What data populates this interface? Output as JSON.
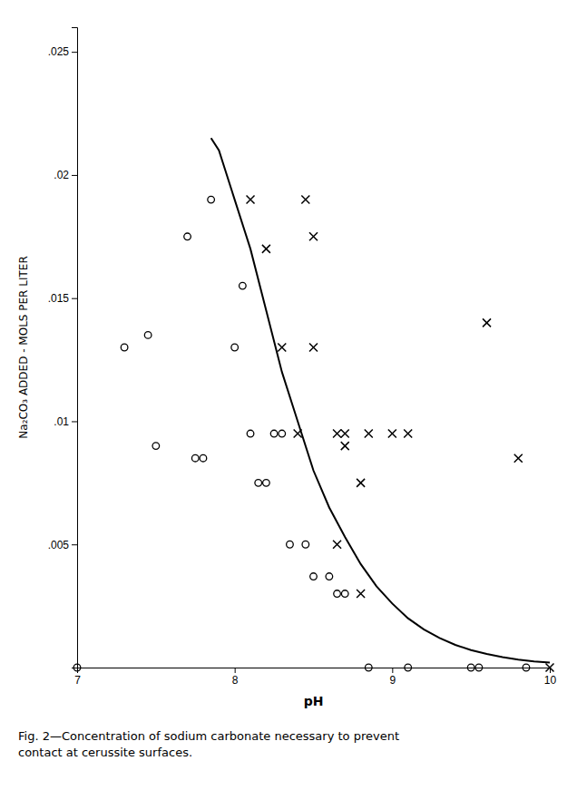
{
  "chart_data": {
    "type": "scatter",
    "xlabel": "pH",
    "ylabel": "Na₂CO₃ ADDED - MOLS PER LITER",
    "annotations": [
      "Fig. 2—Concentration of sodium carbonate necessary to prevent",
      "contact at cerussite surfaces."
    ],
    "xlim": [
      7,
      10
    ],
    "ylim": [
      0,
      0.026
    ],
    "xticks": [
      7,
      8,
      9,
      10
    ],
    "yticks": [
      {
        "value": 0.0,
        "label": ""
      },
      {
        "value": 0.005,
        "label": ".005"
      },
      {
        "value": 0.01,
        "label": ".01"
      },
      {
        "value": 0.015,
        "label": ".015"
      },
      {
        "value": 0.02,
        "label": ".02"
      },
      {
        "value": 0.025,
        "label": ".025"
      }
    ],
    "grid": false,
    "series": [
      {
        "type": "scatter",
        "marker": "circle",
        "color": "#000000",
        "x": [
          7.0,
          7.3,
          7.45,
          7.5,
          7.7,
          7.75,
          7.8,
          7.85,
          8.0,
          8.05,
          8.1,
          8.15,
          8.2,
          8.25,
          8.3,
          8.35,
          8.45,
          8.5,
          8.6,
          8.65,
          8.7,
          8.85,
          9.1,
          9.5,
          9.55,
          9.85
        ],
        "values": [
          0.0,
          0.013,
          0.0135,
          0.009,
          0.0175,
          0.0085,
          0.0085,
          0.019,
          0.013,
          0.0155,
          0.0095,
          0.0075,
          0.0075,
          0.0095,
          0.0095,
          0.005,
          0.005,
          0.0037,
          0.0037,
          0.003,
          0.003,
          0.0,
          0.0,
          0.0,
          0.0,
          0.0
        ]
      },
      {
        "type": "scatter",
        "marker": "x",
        "color": "#000000",
        "x": [
          8.1,
          8.45,
          8.2,
          8.5,
          8.3,
          8.5,
          8.4,
          8.65,
          8.7,
          8.85,
          8.7,
          8.8,
          9.6,
          9.0,
          9.1,
          8.65,
          8.8,
          9.8,
          10.0
        ],
        "values": [
          0.019,
          0.019,
          0.017,
          0.0175,
          0.013,
          0.013,
          0.0095,
          0.0095,
          0.0095,
          0.0095,
          0.009,
          0.0075,
          0.014,
          0.0095,
          0.0095,
          0.005,
          0.003,
          0.0085,
          0.0
        ]
      },
      {
        "type": "line",
        "line_style": "solid",
        "color": "#000000",
        "x": [
          7.85,
          7.9,
          8.0,
          8.1,
          8.2,
          8.3,
          8.4,
          8.5,
          8.6,
          8.7,
          8.8,
          8.9,
          9.0,
          9.1,
          9.2,
          9.3,
          9.4,
          9.5,
          9.6,
          9.7,
          9.8,
          9.9,
          10.0
        ],
        "values": [
          0.0215,
          0.021,
          0.019,
          0.017,
          0.0145,
          0.012,
          0.01,
          0.008,
          0.0065,
          0.0053,
          0.0042,
          0.0033,
          0.0026,
          0.002,
          0.00155,
          0.0012,
          0.00092,
          0.00071,
          0.00055,
          0.00042,
          0.00032,
          0.00025,
          0.0002
        ]
      }
    ]
  }
}
